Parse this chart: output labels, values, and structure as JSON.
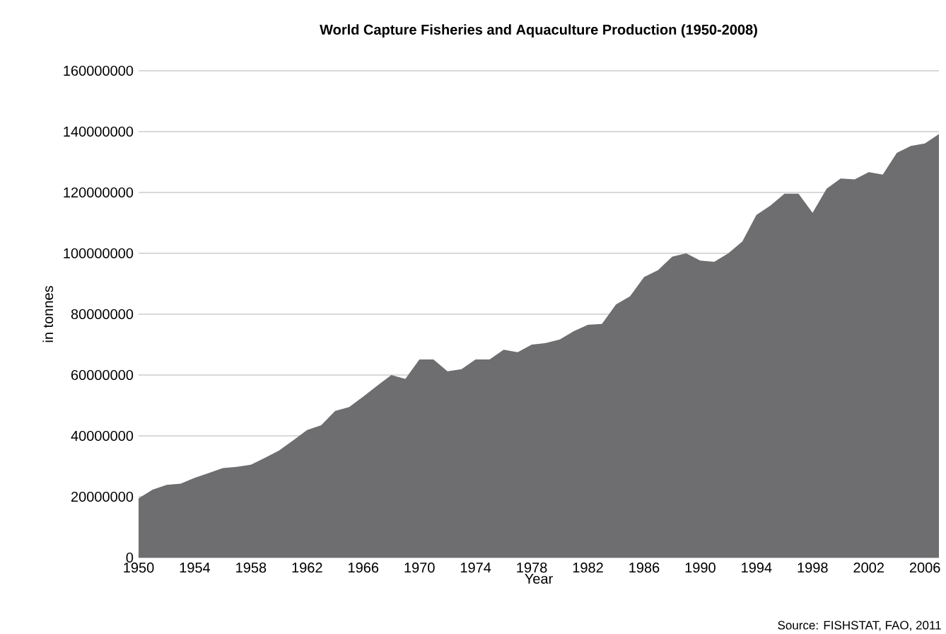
{
  "chart_data": {
    "type": "area",
    "title": "World Capture Fisheries and Aquaculture Production (1950-2008)",
    "xlabel": "Year",
    "ylabel": "in tonnes",
    "annotations": [
      "Source: FISHSTAT, FAO, 2011"
    ],
    "x": [
      1950,
      1951,
      1952,
      1953,
      1954,
      1955,
      1956,
      1957,
      1958,
      1959,
      1960,
      1961,
      1962,
      1963,
      1964,
      1965,
      1966,
      1967,
      1968,
      1969,
      1970,
      1971,
      1972,
      1973,
      1974,
      1975,
      1976,
      1977,
      1978,
      1979,
      1980,
      1981,
      1982,
      1983,
      1984,
      1985,
      1986,
      1987,
      1988,
      1989,
      1990,
      1991,
      1992,
      1993,
      1994,
      1995,
      1996,
      1997,
      1998,
      1999,
      2000,
      2001,
      2002,
      2003,
      2004,
      2005,
      2006,
      2007
    ],
    "values": [
      19500000,
      22300000,
      23900000,
      24300000,
      26200000,
      27800000,
      29400000,
      29800000,
      30500000,
      32800000,
      35200000,
      38500000,
      41900000,
      43500000,
      48200000,
      49500000,
      52900000,
      56500000,
      60000000,
      58700000,
      65100000,
      65100000,
      61200000,
      61900000,
      65100000,
      65100000,
      68300000,
      67500000,
      70000000,
      70500000,
      71700000,
      74400000,
      76500000,
      76800000,
      83200000,
      85900000,
      92200000,
      94500000,
      98900000,
      100000000,
      97600000,
      97200000,
      100000000,
      103900000,
      112600000,
      115700000,
      119600000,
      119600000,
      113300000,
      121200000,
      124600000,
      124300000,
      126700000,
      125900000,
      133000000,
      135300000,
      136100000,
      139200000
    ],
    "color": "#6e6e70",
    "xlim": [
      1950,
      2007
    ],
    "ylim": [
      0,
      160000000
    ],
    "xticks": [
      1950,
      1954,
      1958,
      1962,
      1966,
      1970,
      1974,
      1978,
      1982,
      1986,
      1990,
      1994,
      1998,
      2002,
      2006
    ],
    "yticks": [
      0,
      20000000,
      40000000,
      60000000,
      80000000,
      100000000,
      120000000,
      140000000,
      160000000
    ],
    "grid": "y"
  }
}
